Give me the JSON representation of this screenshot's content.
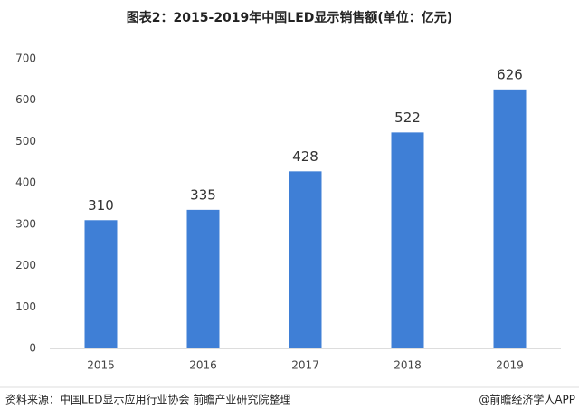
{
  "chart_data": {
    "type": "bar",
    "title": "图表2：2015-2019年中国LED显示销售额(单位：亿元)",
    "categories": [
      "2015",
      "2016",
      "2017",
      "2018",
      "2019"
    ],
    "values": [
      310,
      335,
      428,
      522,
      626
    ],
    "color": "#3f7fd6",
    "ylim": [
      0,
      700
    ],
    "yticks": [
      0,
      100,
      200,
      300,
      400,
      500,
      600,
      700
    ],
    "grid": false,
    "source": "资料来源：中国LED显示应用行业协会 前瞻产业研究院整理",
    "credit": "@前瞻经济学人APP"
  }
}
